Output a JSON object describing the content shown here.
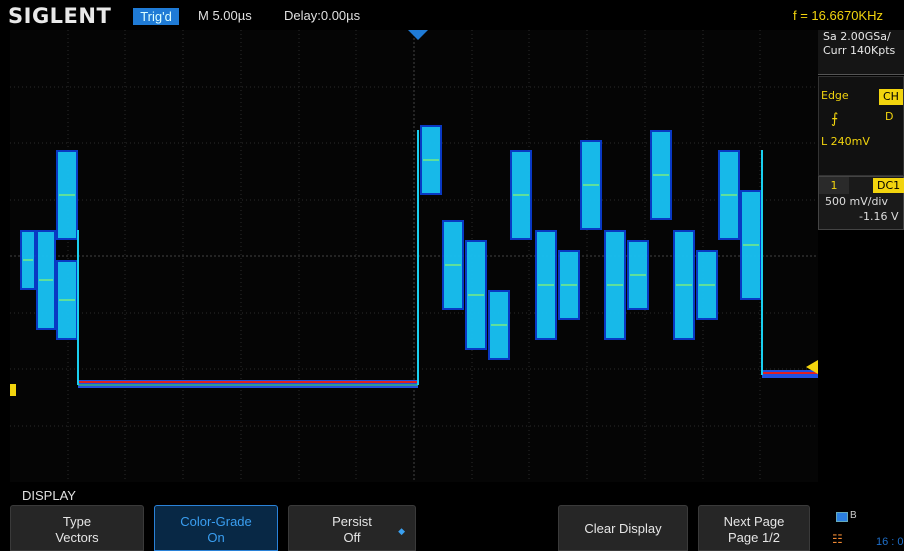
{
  "header": {
    "brand": "SIGLENT",
    "trig_status": "Trig'd",
    "timebase": "M 5.00µs",
    "delay": "Delay:0.00µs",
    "frequency": "f = 16.6670KHz"
  },
  "acquisition": {
    "sample_rate": "Sa 2.00GSa/",
    "memory": "Curr 140Kpts"
  },
  "trigger": {
    "mode": "Edge",
    "source": "CH",
    "slope_icon": "rising-edge-icon",
    "coupling": "D",
    "level": "L  240mV"
  },
  "channel1": {
    "number": "1",
    "coupling": "DC1",
    "scale": "500 mV/div",
    "offset": "-1.16 V"
  },
  "menu": {
    "title": "DISPLAY",
    "softkeys": [
      {
        "line1": "Type",
        "line2": "Vectors"
      },
      {
        "line1": "Color-Grade",
        "line2": "On"
      },
      {
        "line1": "Persist",
        "line2": "Off"
      },
      {
        "line1": "Clear Display",
        "line2": ""
      },
      {
        "line1": "Next Page",
        "line2": "Page 1/2"
      }
    ]
  },
  "status": {
    "usb_label": "B",
    "clock": "16 : 0"
  },
  "colors": {
    "accent_blue": "#1f7bd6",
    "trigger_yellow": "#f2d40e",
    "waveform_cyan": "#1ad0f0"
  }
}
